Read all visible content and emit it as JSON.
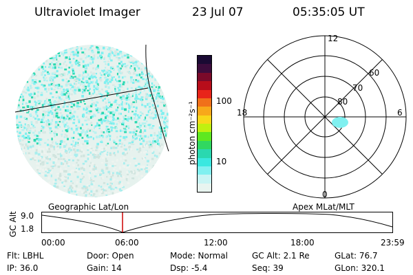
{
  "header": {
    "title": "Ultraviolet Imager",
    "date": "23 Jul 07",
    "time": "05:35:05 UT"
  },
  "colorbar": {
    "unit_label": "photon cm⁻²s⁻¹",
    "ticks": [
      "100",
      "10"
    ],
    "colors": [
      "#1a0a33",
      "#3c0c3c",
      "#7a0a2a",
      "#b80d1a",
      "#e8241a",
      "#f0701a",
      "#f8a81a",
      "#f8d81a",
      "#c0f010",
      "#5ee820",
      "#30d860",
      "#2ad8b0",
      "#3ae8e0",
      "#80f0f0",
      "#c8f4f4",
      "#e8f4f0"
    ]
  },
  "polar": {
    "labels": {
      "top": "12",
      "left": "18",
      "right": "6",
      "bottom": "0",
      "r60": "60",
      "r70": "70",
      "r80": "80"
    }
  },
  "timeline": {
    "label_left": "Geographic Lat/Lon",
    "label_right": "Apex MLat/MLT",
    "yaxis_label": "GC Alt",
    "y_ticks": [
      "9.0",
      "1.8"
    ],
    "x_ticks": [
      "00:00",
      "06:00",
      "12:00",
      "18:00",
      "23:59"
    ]
  },
  "info": {
    "flt": "Flt: LBHL",
    "door": "Door: Open",
    "mode": "Mode: Normal",
    "gcalt": "GC Alt: 2.1 Re",
    "glat": "GLat:  76.7",
    "ip": "IP: 36.0",
    "gain": "Gain: 14",
    "dsp": "Dsp:    -5.4",
    "seq": "Seq: 39",
    "glon": "GLon: 320.1"
  }
}
